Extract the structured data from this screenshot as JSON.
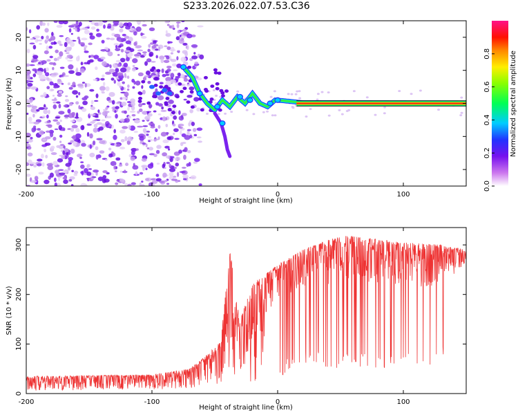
{
  "title": "S233.2026.022.07.53.C36",
  "chart_data": [
    {
      "type": "heatmap",
      "description": "Spectrogram of frequency vs height of straight line",
      "xlabel": "Height of straight line (km)",
      "ylabel": "Frequency (Hz)",
      "xlim": [
        -200,
        150
      ],
      "ylim": [
        -25,
        25
      ],
      "xticks": [
        -200,
        -100,
        0,
        100
      ],
      "yticks": [
        -20,
        -10,
        0,
        10,
        20
      ],
      "colorbar": {
        "label": "Normalized spectral amplitude",
        "range": [
          0,
          1
        ],
        "ticks": [
          0.0,
          0.2,
          0.4,
          0.6,
          0.8
        ],
        "tick_labels": [
          "0.0",
          "0.2",
          "0.4",
          "0.6",
          "0.8"
        ]
      },
      "carrier_track": [
        {
          "x": -75,
          "y": 11
        },
        {
          "x": -68,
          "y": 8
        },
        {
          "x": -62,
          "y": 3
        },
        {
          "x": -56,
          "y": 0
        },
        {
          "x": -50,
          "y": -2
        },
        {
          "x": -44,
          "y": 1
        },
        {
          "x": -38,
          "y": -1
        },
        {
          "x": -32,
          "y": 2
        },
        {
          "x": -26,
          "y": 0
        },
        {
          "x": -20,
          "y": 3
        },
        {
          "x": -14,
          "y": 0
        },
        {
          "x": -8,
          "y": -1
        },
        {
          "x": -2,
          "y": 1
        },
        {
          "x": 5,
          "y": 0.8
        },
        {
          "x": 20,
          "y": 0.2
        },
        {
          "x": 150,
          "y": 0
        }
      ],
      "branch_track": [
        {
          "x": -50,
          "y": -3
        },
        {
          "x": -45,
          "y": -6
        },
        {
          "x": -42,
          "y": -10
        },
        {
          "x": -40,
          "y": -14
        },
        {
          "x": -38,
          "y": -16
        }
      ]
    },
    {
      "type": "line",
      "xlabel": "Height of straight line (km)",
      "ylabel": "SNR (10 * v/v)",
      "xlim": [
        -200,
        150
      ],
      "ylim": [
        0,
        335
      ],
      "xticks": [
        -200,
        -100,
        0,
        100
      ],
      "yticks": [
        0,
        100,
        200,
        300
      ],
      "series": [
        {
          "name": "SNR",
          "color": "#ee3333",
          "envelope": [
            {
              "x": -200,
              "low": 5,
              "high": 35
            },
            {
              "x": -100,
              "low": 8,
              "high": 38
            },
            {
              "x": -70,
              "low": 10,
              "high": 50
            },
            {
              "x": -55,
              "low": 15,
              "high": 80
            },
            {
              "x": -45,
              "low": 20,
              "high": 110
            },
            {
              "x": -38,
              "low": 30,
              "high": 290
            },
            {
              "x": -30,
              "low": 20,
              "high": 150
            },
            {
              "x": -20,
              "low": 20,
              "high": 220
            },
            {
              "x": -10,
              "low": 15,
              "high": 240
            },
            {
              "x": 0,
              "low": 30,
              "high": 260
            },
            {
              "x": 20,
              "low": 60,
              "high": 290
            },
            {
              "x": 50,
              "low": 50,
              "high": 320
            },
            {
              "x": 100,
              "low": 50,
              "high": 305
            },
            {
              "x": 130,
              "low": 60,
              "high": 300
            },
            {
              "x": 150,
              "low": 215,
              "high": 290
            }
          ]
        }
      ]
    }
  ]
}
